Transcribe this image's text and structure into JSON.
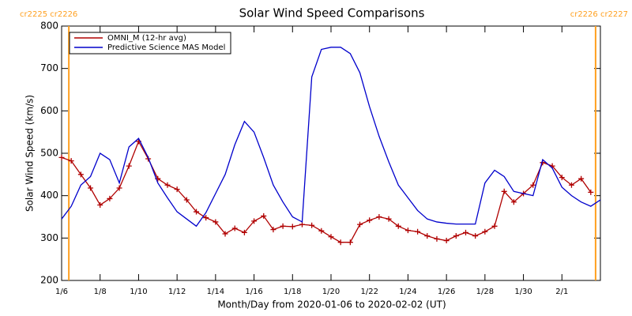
{
  "chart_data": {
    "type": "line",
    "title": "Solar Wind Speed Comparisons",
    "xlabel": "Month/Day from 2020-01-06 to 2020-02-02 (UT)",
    "ylabel": "Solar Wind Speed (km/s)",
    "x": [
      "2020-01-06T00:00",
      "2020-01-06T12:00",
      "2020-01-07T00:00",
      "2020-01-07T12:00",
      "2020-01-08T00:00",
      "2020-01-08T12:00",
      "2020-01-09T00:00",
      "2020-01-09T12:00",
      "2020-01-10T00:00",
      "2020-01-10T12:00",
      "2020-01-11T00:00",
      "2020-01-11T12:00",
      "2020-01-12T00:00",
      "2020-01-12T12:00",
      "2020-01-13T00:00",
      "2020-01-13T12:00",
      "2020-01-14T00:00",
      "2020-01-14T12:00",
      "2020-01-15T00:00",
      "2020-01-15T12:00",
      "2020-01-16T00:00",
      "2020-01-16T12:00",
      "2020-01-17T00:00",
      "2020-01-17T12:00",
      "2020-01-18T00:00",
      "2020-01-18T12:00",
      "2020-01-19T00:00",
      "2020-01-19T12:00",
      "2020-01-20T00:00",
      "2020-01-20T12:00",
      "2020-01-21T00:00",
      "2020-01-21T12:00",
      "2020-01-22T00:00",
      "2020-01-22T12:00",
      "2020-01-23T00:00",
      "2020-01-23T12:00",
      "2020-01-24T00:00",
      "2020-01-24T12:00",
      "2020-01-25T00:00",
      "2020-01-25T12:00",
      "2020-01-26T00:00",
      "2020-01-26T12:00",
      "2020-01-27T00:00",
      "2020-01-27T12:00",
      "2020-01-28T00:00",
      "2020-01-28T12:00",
      "2020-01-29T00:00",
      "2020-01-29T12:00",
      "2020-01-30T00:00",
      "2020-01-30T12:00",
      "2020-01-31T00:00",
      "2020-01-31T12:00",
      "2020-02-01T00:00",
      "2020-02-01T12:00",
      "2020-02-02T00:00",
      "2020-02-02T12:00",
      "2020-02-03T00:00"
    ],
    "series": [
      {
        "name": "OMNI_M (12-hr avg)",
        "color": "#b00000",
        "marker": "+",
        "values": [
          490,
          482,
          450,
          418,
          378,
          393,
          418,
          470,
          528,
          487,
          440,
          425,
          415,
          390,
          362,
          348,
          338,
          310,
          323,
          313,
          340,
          352,
          320,
          328,
          327,
          332,
          330,
          317,
          303,
          290,
          290,
          332,
          342,
          350,
          345,
          328,
          318,
          315,
          305,
          298,
          294,
          305,
          313,
          305,
          315,
          328,
          410,
          385,
          405,
          425,
          478,
          470,
          443,
          425,
          440,
          408,
          null
        ]
      },
      {
        "name": "Predictive Science MAS Model",
        "color": "#0000cc",
        "values": [
          345,
          375,
          425,
          445,
          500,
          485,
          430,
          515,
          535,
          490,
          430,
          395,
          362,
          345,
          328,
          360,
          405,
          450,
          520,
          575,
          550,
          490,
          425,
          385,
          350,
          338,
          680,
          745,
          750,
          750,
          735,
          690,
          610,
          540,
          480,
          425,
          395,
          365,
          345,
          338,
          335,
          333,
          333,
          333,
          430,
          460,
          445,
          410,
          405,
          400,
          485,
          465,
          420,
          400,
          385,
          375,
          390
        ]
      }
    ],
    "xlim": [
      "2020-01-06T00:00",
      "2020-02-03T00:00"
    ],
    "xticks": [
      {
        "value": "2020-01-06T00:00",
        "label": "1/6"
      },
      {
        "value": "2020-01-08T00:00",
        "label": "1/8"
      },
      {
        "value": "2020-01-10T00:00",
        "label": "1/10"
      },
      {
        "value": "2020-01-12T00:00",
        "label": "1/12"
      },
      {
        "value": "2020-01-14T00:00",
        "label": "1/14"
      },
      {
        "value": "2020-01-16T00:00",
        "label": "1/16"
      },
      {
        "value": "2020-01-18T00:00",
        "label": "1/18"
      },
      {
        "value": "2020-01-20T00:00",
        "label": "1/20"
      },
      {
        "value": "2020-01-22T00:00",
        "label": "1/22"
      },
      {
        "value": "2020-01-24T00:00",
        "label": "1/24"
      },
      {
        "value": "2020-01-26T00:00",
        "label": "1/26"
      },
      {
        "value": "2020-01-28T00:00",
        "label": "1/28"
      },
      {
        "value": "2020-01-30T00:00",
        "label": "1/30"
      },
      {
        "value": "2020-02-01T00:00",
        "label": "2/1"
      }
    ],
    "ylim": [
      200,
      800
    ],
    "yticks": [
      200,
      300,
      400,
      500,
      600,
      700,
      800
    ],
    "grid": false,
    "legend": "upper left",
    "annotations": [
      {
        "text": "cr2225 cr2226",
        "x": "2020-01-06T09:00",
        "color": "#ffa020"
      },
      {
        "text": "cr2226 cr2227",
        "x": "2020-02-02T18:00",
        "color": "#ffa020"
      }
    ]
  }
}
